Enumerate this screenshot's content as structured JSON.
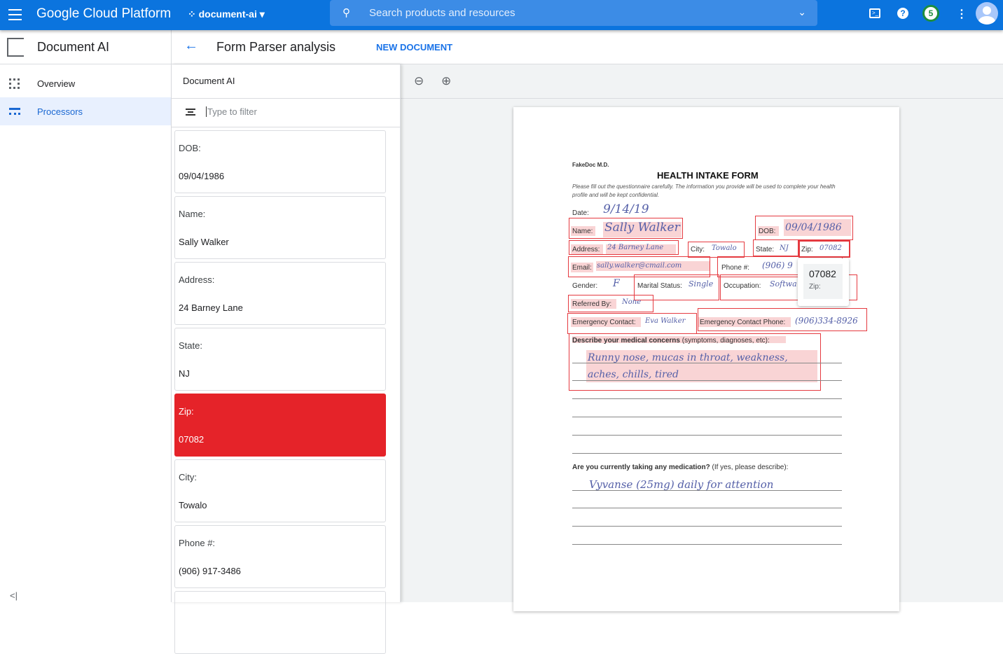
{
  "topbar": {
    "brand": "Google Cloud Platform",
    "project": "document-ai",
    "search_placeholder": "Search products and resources",
    "notification_count": "5"
  },
  "sidebar": {
    "title": "Document AI",
    "items": [
      {
        "label": "Overview",
        "active": false
      },
      {
        "label": "Processors",
        "active": true
      }
    ]
  },
  "header": {
    "title": "Form Parser analysis",
    "new_document": "NEW DOCUMENT"
  },
  "list": {
    "title": "Document AI",
    "filter_placeholder": "Type to filter",
    "fields": [
      {
        "key": "DOB:",
        "value": "09/04/1986"
      },
      {
        "key": "Name:",
        "value": "Sally Walker"
      },
      {
        "key": "Address:",
        "value": "24 Barney Lane"
      },
      {
        "key": "State:",
        "value": "NJ"
      },
      {
        "key": "Zip:",
        "value": "07082",
        "selected": true
      },
      {
        "key": "City:",
        "value": "Towalo"
      },
      {
        "key": "Phone #:",
        "value": "(906) 917-3486"
      }
    ]
  },
  "document": {
    "clinic": "FakeDoc M.D.",
    "title": "HEALTH INTAKE FORM",
    "intro": "Please fill out the questionnaire carefully. The information you provide will be used to complete your health profile and will be kept confidential.",
    "labels": {
      "date": "Date:",
      "name": "Name:",
      "dob": "DOB:",
      "address": "Address:",
      "city": "City:",
      "state": "State:",
      "zip": "Zip:",
      "email": "Email:",
      "phone": "Phone #:",
      "gender": "Gender:",
      "marital": "Marital Status:",
      "occupation": "Occupation:",
      "referred": "Referred By:",
      "emergency": "Emergency Contact:",
      "emergency_phone": "Emergency Contact Phone:",
      "concerns_bold": "Describe your medical concerns",
      "concerns_rest": " (symptoms, diagnoses, etc):",
      "medication_bold": "Are you currently taking any medication?",
      "medication_rest": " (If yes, please describe):"
    },
    "values": {
      "date": "9/14/19",
      "name": "Sally Walker",
      "dob": "09/04/1986",
      "address": "24 Barney Lane",
      "city": "Towalo",
      "state": "NJ",
      "zip": "07082",
      "email": "sally.walker@cmail.com",
      "phone": "(906) 9",
      "gender": "F",
      "marital": "Single",
      "occupation": "Softwa",
      "referred": "None",
      "emergency": "Eva Walker",
      "emergency_phone": "(906)334-8926",
      "concerns1": "Runny nose, mucas in throat, weakness,",
      "concerns2": "aches, chills, tired",
      "medication": "Vyvanse (25mg) daily for attention"
    },
    "tooltip": {
      "value": "07082",
      "key": "Zip:"
    }
  },
  "colors": {
    "topbar": "#0b74de",
    "highlight": "#e52329",
    "accent": "#1a73e8"
  }
}
